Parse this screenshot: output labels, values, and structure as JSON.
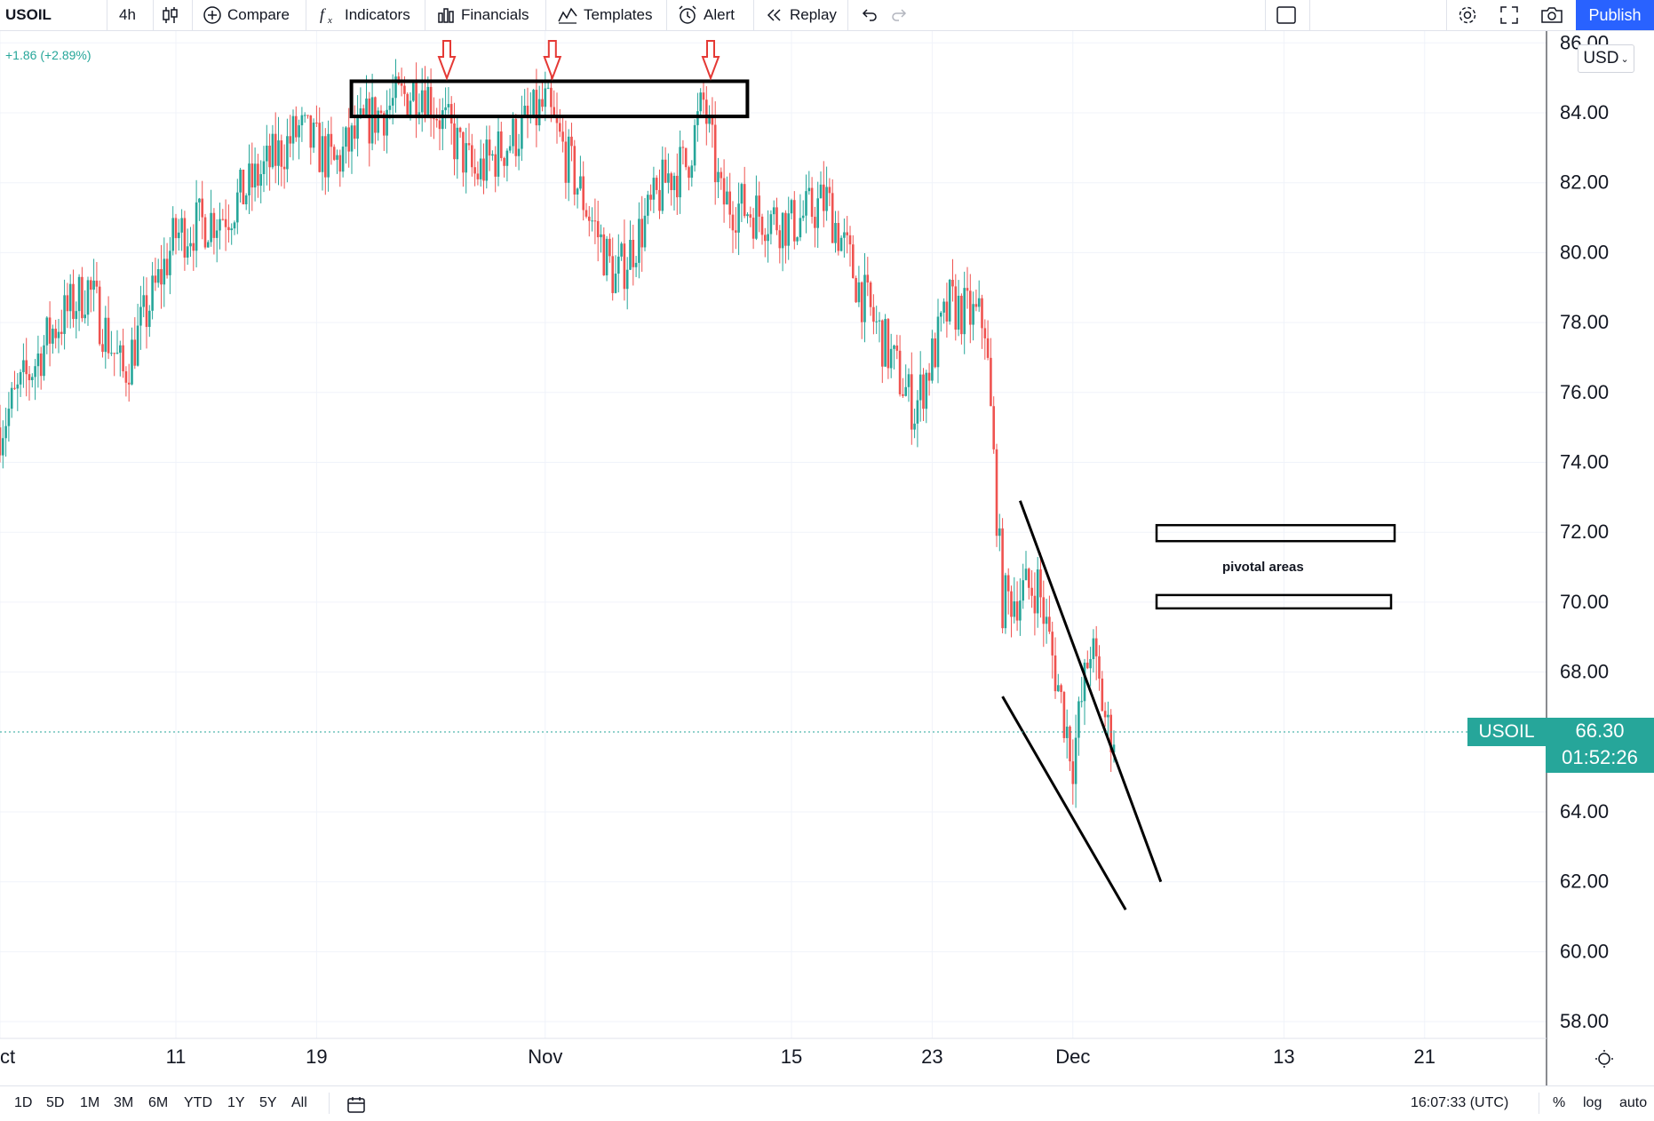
{
  "toolbar": {
    "symbol": "USOIL",
    "interval": "4h",
    "compare": "Compare",
    "indicators": "Indicators",
    "financials": "Financials",
    "templates": "Templates",
    "alert": "Alert",
    "replay": "Replay",
    "publish": "Publish"
  },
  "header": {
    "change": "+1.86 (+2.89%)",
    "currency": "USD"
  },
  "price_scale": {
    "ticks": [
      "86.00",
      "84.00",
      "82.00",
      "80.00",
      "78.00",
      "76.00",
      "74.00",
      "72.00",
      "70.00",
      "68.00",
      "64.00",
      "62.00",
      "60.00",
      "58.00"
    ],
    "last_price": "66.30",
    "countdown": "01:52:26",
    "symbol_tag": "USOIL"
  },
  "time_scale": {
    "ticks": [
      "Oct",
      "11",
      "19",
      "Nov",
      "15",
      "23",
      "Dec",
      "13",
      "21"
    ]
  },
  "annotation": {
    "label": "pivotal areas"
  },
  "bottom": {
    "ranges": [
      "1D",
      "5D",
      "1M",
      "3M",
      "6M",
      "YTD",
      "1Y",
      "5Y",
      "All"
    ],
    "clock": "16:07:33 (UTC)",
    "percent": "%",
    "log": "log",
    "auto": "auto"
  },
  "colors": {
    "up": "#26a69a",
    "down": "#ef5350",
    "accent": "#2962ff",
    "marker": "#e53935"
  },
  "icons": [
    "candles-icon",
    "plus-circle-icon",
    "fx-icon",
    "bar-chart-icon",
    "templates-icon",
    "alarm-clock-icon",
    "rewind-icon",
    "undo-icon",
    "redo-icon",
    "rectangle-icon",
    "gear-icon",
    "fullscreen-icon",
    "camera-icon",
    "calendar-icon",
    "settings-sun-icon"
  ],
  "chart_data": {
    "type": "candlestick",
    "symbol": "USOIL",
    "interval": "4h",
    "ylim": [
      57.5,
      86.5
    ],
    "x_range": [
      "Oct 1",
      "Dec 25"
    ],
    "x_ticks": [
      "Oct",
      "11",
      "19",
      "Nov",
      "15",
      "23",
      "Dec",
      "13",
      "21"
    ],
    "last_price": 66.3,
    "close_path": [
      {
        "date": "Oct 1",
        "close": 75.0
      },
      {
        "date": "Oct 4",
        "close": 77.8
      },
      {
        "date": "Oct 6",
        "close": 79.0
      },
      {
        "date": "Oct 8",
        "close": 76.5
      },
      {
        "date": "Oct 11",
        "close": 80.5
      },
      {
        "date": "Oct 14",
        "close": 81.2
      },
      {
        "date": "Oct 18",
        "close": 83.5
      },
      {
        "date": "Oct 20",
        "close": 82.5
      },
      {
        "date": "Oct 22",
        "close": 83.8
      },
      {
        "date": "Oct 25",
        "close": 84.8
      },
      {
        "date": "Oct 28",
        "close": 82.2
      },
      {
        "date": "Nov 1",
        "close": 84.2
      },
      {
        "date": "Nov 4",
        "close": 80.5
      },
      {
        "date": "Nov 5",
        "close": 79.2
      },
      {
        "date": "Nov 8",
        "close": 82.2
      },
      {
        "date": "Nov 9",
        "close": 82.5
      },
      {
        "date": "Nov 10",
        "close": 84.3
      },
      {
        "date": "Nov 11",
        "close": 81.5
      },
      {
        "date": "Nov 15",
        "close": 80.8
      },
      {
        "date": "Nov 17",
        "close": 81.5
      },
      {
        "date": "Nov 19",
        "close": 78.8
      },
      {
        "date": "Nov 22",
        "close": 75.5
      },
      {
        "date": "Nov 24",
        "close": 78.5
      },
      {
        "date": "Nov 26",
        "close": 78.0
      },
      {
        "date": "Nov 27",
        "close": 70.0
      },
      {
        "date": "Nov 29",
        "close": 70.5
      },
      {
        "date": "Dec 1",
        "close": 65.5
      },
      {
        "date": "Dec 2",
        "close": 68.8
      },
      {
        "date": "Dec 3",
        "close": 66.3
      }
    ],
    "drawings": {
      "resistance_zone": {
        "from": "Oct 23",
        "to": "Nov 13",
        "low": 84.1,
        "high": 84.7
      },
      "top_markers": [
        "Oct 26",
        "Nov 1",
        "Nov 10"
      ],
      "pivotal_areas": [
        {
          "from": "Dec 10",
          "to": "Dec 22",
          "level": 72.0
        },
        {
          "from": "Dec 10",
          "to": "Dec 22",
          "level": 70.0
        }
      ],
      "falling_wedge": {
        "upper": [
          [
            "Nov 28",
            72.9
          ],
          [
            "Dec 6",
            62.0
          ]
        ],
        "lower": [
          [
            "Nov 27",
            67.3
          ],
          [
            "Dec 4",
            61.2
          ]
        ]
      }
    }
  }
}
